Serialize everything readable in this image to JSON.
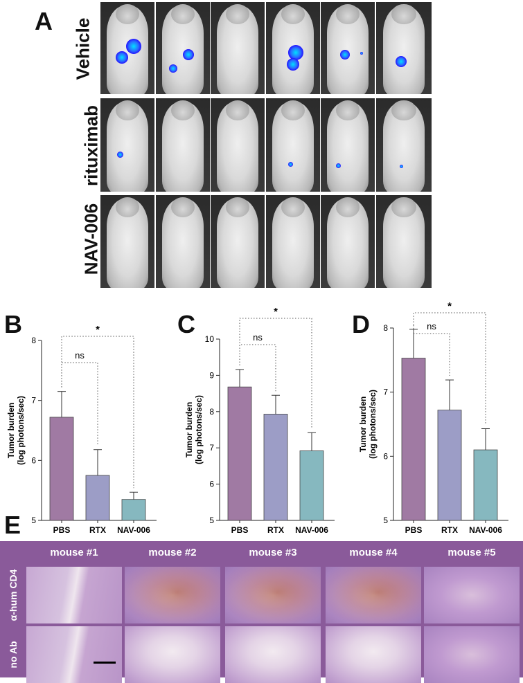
{
  "panel_a": {
    "letter": "A",
    "rows": [
      {
        "label": "Vehicle"
      },
      {
        "label": "rituximab"
      },
      {
        "label": "NAV-006"
      }
    ]
  },
  "panel_b": {
    "letter": "B"
  },
  "panel_c": {
    "letter": "C"
  },
  "panel_d": {
    "letter": "D"
  },
  "panel_e": {
    "letter": "E",
    "columns": [
      "mouse #1",
      "mouse #2",
      "mouse #3",
      "mouse #4",
      "mouse #5"
    ],
    "rows": [
      "α-hum CD4",
      "no Ab"
    ]
  },
  "chart_data": [
    {
      "type": "bar",
      "panel": "B",
      "categories": [
        "PBS",
        "RTX",
        "NAV-006"
      ],
      "values": [
        6.72,
        5.75,
        5.35
      ],
      "errors": [
        0.43,
        0.43,
        0.12
      ],
      "ylabel": "Tumor burden\n(log photons/sec)",
      "ylim": [
        5,
        8
      ],
      "yticks": [
        "5",
        "6",
        "7",
        "8"
      ],
      "colors": [
        "#a07aa3",
        "#9c9dc6",
        "#86b8bf"
      ],
      "annotations": [
        {
          "text": "ns",
          "between": [
            "PBS",
            "RTX"
          ]
        },
        {
          "text": "*",
          "between": [
            "PBS",
            "NAV-006"
          ]
        }
      ]
    },
    {
      "type": "bar",
      "panel": "C",
      "categories": [
        "PBS",
        "RTX",
        "NAV-006"
      ],
      "values": [
        8.68,
        7.93,
        6.92
      ],
      "errors": [
        0.48,
        0.52,
        0.5
      ],
      "ylabel": "Tumor burden\n(log photons/sec)",
      "ylim": [
        5,
        10
      ],
      "yticks": [
        "5",
        "6",
        "7",
        "8",
        "9",
        "10"
      ],
      "colors": [
        "#a07aa3",
        "#9c9dc6",
        "#86b8bf"
      ],
      "annotations": [
        {
          "text": "ns",
          "between": [
            "PBS",
            "RTX"
          ]
        },
        {
          "text": "*",
          "between": [
            "PBS",
            "NAV-006"
          ]
        }
      ]
    },
    {
      "type": "bar",
      "panel": "D",
      "categories": [
        "PBS",
        "RTX",
        "NAV-006"
      ],
      "values": [
        7.53,
        6.72,
        6.1
      ],
      "errors": [
        0.45,
        0.47,
        0.33
      ],
      "ylabel": "Tumor burden\n(log photons/sec)",
      "ylim": [
        5,
        8
      ],
      "yticks": [
        "5",
        "6",
        "7",
        "8"
      ],
      "colors": [
        "#a07aa3",
        "#9c9dc6",
        "#86b8bf"
      ],
      "annotations": [
        {
          "text": "ns",
          "between": [
            "PBS",
            "RTX"
          ]
        },
        {
          "text": "*",
          "between": [
            "PBS",
            "NAV-006"
          ]
        }
      ]
    }
  ]
}
